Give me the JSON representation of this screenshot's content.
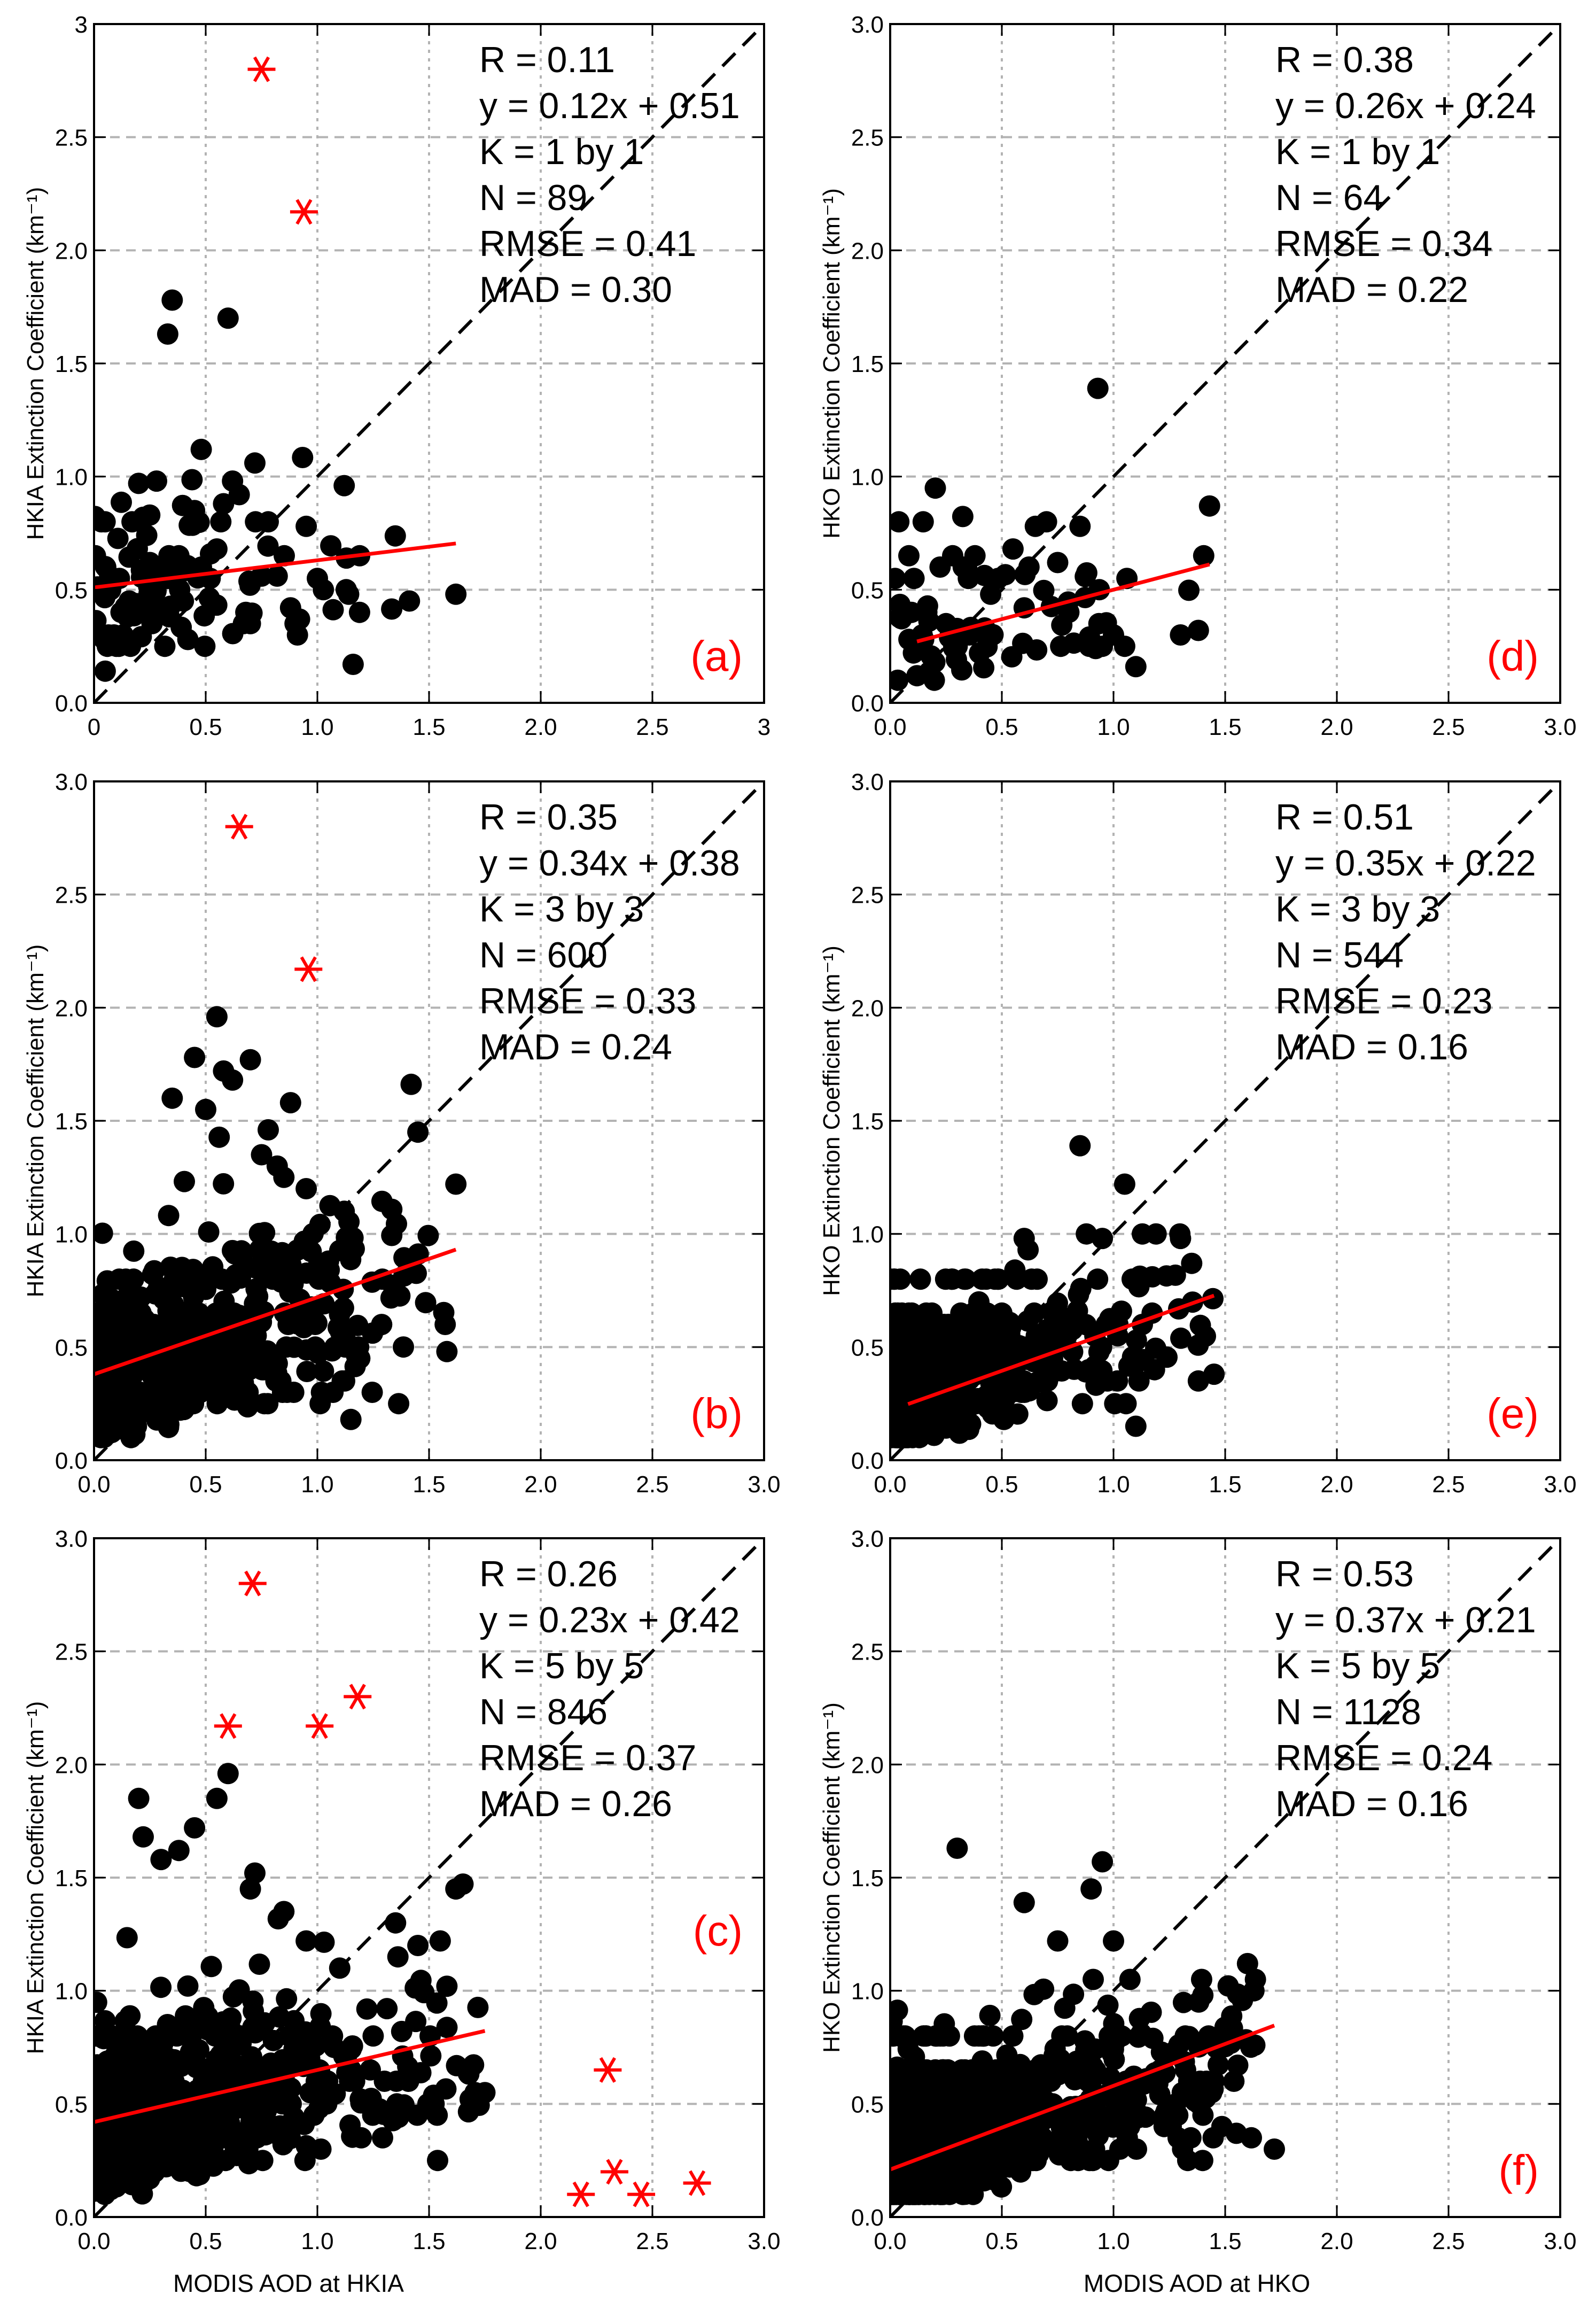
{
  "figure": {
    "bottom_xlabels": [
      "MODIS AOD at HKIA",
      "MODIS AOD at HKO"
    ]
  },
  "chart_data": [
    {
      "id": "a",
      "type": "scatter",
      "panel_label": "(a)",
      "ylabel": "HKIA Extinction Coefficient (km⁻¹)",
      "xlabel": "",
      "xlim": [
        0,
        3
      ],
      "ylim": [
        0,
        3
      ],
      "xticks": [
        0,
        0.5,
        1.0,
        1.5,
        2.0,
        2.5,
        3
      ],
      "xtick_labels": [
        "0",
        "0.5",
        "1.0",
        "1.5",
        "2.0",
        "2.5",
        "3"
      ],
      "yticks": [
        0,
        0.5,
        1.0,
        1.5,
        2.0,
        2.5,
        3
      ],
      "ytick_labels": [
        "0.0",
        "0.5",
        "1.0",
        "1.5",
        "2.0",
        "2.5",
        "3"
      ],
      "grid": true,
      "stats": [
        "R = 0.11",
        "y = 0.12x + 0.51",
        "K = 1 by 1",
        "N = 89",
        "RMSE = 0.41",
        "MAD = 0.30"
      ],
      "fit_line": {
        "slope": 0.12,
        "intercept": 0.51,
        "x_range": [
          0,
          1.62
        ]
      },
      "one_to_one": true,
      "outliers": [
        [
          0.75,
          2.8
        ],
        [
          0.94,
          2.17
        ]
      ],
      "seed": 11,
      "generated_points": {
        "n": 89,
        "x_max": 1.62,
        "x_scale": 0.5,
        "y_max": 1.8,
        "y_noise": 0.18
      },
      "points": [
        [
          0.05,
          0.14
        ],
        [
          0.1,
          0.25
        ],
        [
          0.13,
          0.3
        ],
        [
          0.15,
          0.38
        ],
        [
          0.17,
          0.8
        ],
        [
          0.2,
          0.97
        ],
        [
          0.22,
          0.82
        ],
        [
          0.25,
          0.62
        ],
        [
          0.28,
          0.98
        ],
        [
          0.3,
          0.55
        ],
        [
          0.33,
          1.63
        ],
        [
          0.35,
          1.78
        ],
        [
          0.38,
          0.65
        ],
        [
          0.4,
          0.45
        ],
        [
          0.42,
          0.28
        ],
        [
          0.45,
          0.85
        ],
        [
          0.48,
          1.12
        ],
        [
          0.52,
          0.55
        ],
        [
          0.55,
          0.68
        ],
        [
          0.58,
          0.88
        ],
        [
          0.6,
          1.7
        ],
        [
          0.62,
          0.98
        ],
        [
          0.65,
          0.92
        ],
        [
          0.7,
          0.35
        ],
        [
          0.72,
          1.06
        ],
        [
          0.75,
          0.56
        ],
        [
          0.78,
          0.8
        ],
        [
          0.82,
          0.56
        ],
        [
          0.88,
          0.42
        ],
        [
          0.9,
          0.35
        ],
        [
          0.92,
          0.37
        ],
        [
          0.95,
          0.78
        ],
        [
          1.0,
          0.55
        ],
        [
          1.12,
          0.96
        ],
        [
          1.13,
          0.64
        ],
        [
          1.14,
          0.48
        ],
        [
          1.16,
          0.17
        ],
        [
          1.62,
          0.48
        ]
      ]
    },
    {
      "id": "d",
      "type": "scatter",
      "panel_label": "(d)",
      "ylabel": "HKO Extinction Coefficient (km⁻¹)",
      "xlabel": "",
      "xlim": [
        0,
        3
      ],
      "ylim": [
        0,
        3
      ],
      "xticks": [
        0,
        0.5,
        1.0,
        1.5,
        2.0,
        2.5,
        3.0
      ],
      "xtick_labels": [
        "0.0",
        "0.5",
        "1.0",
        "1.5",
        "2.0",
        "2.5",
        "3.0"
      ],
      "yticks": [
        0,
        0.5,
        1.0,
        1.5,
        2.0,
        2.5,
        3.0
      ],
      "ytick_labels": [
        "0.0",
        "0.5",
        "1.0",
        "1.5",
        "2.0",
        "2.5",
        "3.0"
      ],
      "grid": true,
      "stats": [
        "R = 0.38",
        "y = 0.26x + 0.24",
        "K = 1 by 1",
        "N = 64",
        "RMSE = 0.34",
        "MAD = 0.22"
      ],
      "fit_line": {
        "slope": 0.26,
        "intercept": 0.24,
        "x_range": [
          0.12,
          1.43
        ]
      },
      "one_to_one": true,
      "outliers": [],
      "seed": 44,
      "generated_points": {
        "n": 64,
        "x_max": 1.43,
        "x_scale": 0.5,
        "y_max": 1.0,
        "y_noise": 0.13
      },
      "points": [
        [
          0.12,
          0.12
        ],
        [
          0.15,
          0.28
        ],
        [
          0.2,
          0.18
        ],
        [
          0.25,
          0.35
        ],
        [
          0.28,
          0.65
        ],
        [
          0.3,
          0.25
        ],
        [
          0.35,
          0.55
        ],
        [
          0.4,
          0.22
        ],
        [
          0.45,
          0.48
        ],
        [
          0.55,
          0.68
        ],
        [
          0.6,
          0.42
        ],
        [
          0.65,
          0.78
        ],
        [
          0.7,
          0.8
        ],
        [
          0.75,
          0.62
        ],
        [
          0.8,
          0.4
        ],
        [
          0.85,
          0.78
        ],
        [
          0.92,
          0.24
        ],
        [
          0.93,
          1.39
        ],
        [
          0.95,
          0.25
        ],
        [
          1.0,
          0.3
        ],
        [
          1.05,
          0.25
        ],
        [
          1.1,
          0.16
        ],
        [
          1.3,
          0.3
        ],
        [
          1.38,
          0.32
        ],
        [
          1.43,
          0.87
        ]
      ]
    },
    {
      "id": "b",
      "type": "scatter",
      "panel_label": "(b)",
      "ylabel": "HKIA Extinction Coefficient (km⁻¹)",
      "xlabel": "",
      "xlim": [
        0,
        3
      ],
      "ylim": [
        0,
        3
      ],
      "xticks": [
        0,
        0.5,
        1.0,
        1.5,
        2.0,
        2.5,
        3.0
      ],
      "xtick_labels": [
        "0.0",
        "0.5",
        "1.0",
        "1.5",
        "2.0",
        "2.5",
        "3.0"
      ],
      "yticks": [
        0,
        0.5,
        1.0,
        1.5,
        2.0,
        2.5,
        3.0
      ],
      "ytick_labels": [
        "0.0",
        "0.5",
        "1.0",
        "1.5",
        "2.0",
        "2.5",
        "3.0"
      ],
      "grid": true,
      "stats": [
        "R = 0.35",
        "y = 0.34x + 0.38",
        "K = 3 by 3",
        "N = 600",
        "RMSE = 0.33",
        "MAD = 0.24"
      ],
      "fit_line": {
        "slope": 0.34,
        "intercept": 0.38,
        "x_range": [
          0,
          1.62
        ]
      },
      "one_to_one": true,
      "outliers": [
        [
          0.65,
          2.8
        ],
        [
          0.96,
          2.17
        ]
      ],
      "seed": 22,
      "generated_points": {
        "n": 520,
        "x_max": 1.62,
        "x_scale": 0.5,
        "y_max": 2.0,
        "y_noise": 0.2
      },
      "points": [
        [
          0.05,
          0.38
        ],
        [
          0.35,
          1.6
        ],
        [
          0.45,
          1.78
        ],
        [
          0.5,
          1.55
        ],
        [
          0.55,
          1.96
        ],
        [
          0.58,
          1.72
        ],
        [
          0.62,
          1.68
        ],
        [
          0.7,
          1.77
        ],
        [
          0.75,
          1.35
        ],
        [
          0.78,
          1.46
        ],
        [
          0.82,
          1.3
        ],
        [
          0.85,
          1.25
        ],
        [
          0.88,
          1.58
        ],
        [
          0.95,
          1.2
        ],
        [
          1.05,
          0.88
        ],
        [
          1.12,
          1.1
        ],
        [
          1.15,
          0.18
        ],
        [
          1.45,
          1.45
        ],
        [
          1.58,
          0.48
        ],
        [
          1.62,
          1.22
        ]
      ]
    },
    {
      "id": "e",
      "type": "scatter",
      "panel_label": "(e)",
      "ylabel": "HKO Extinction Coefficient (km⁻¹)",
      "xlabel": "",
      "xlim": [
        0,
        3
      ],
      "ylim": [
        0,
        3
      ],
      "xticks": [
        0,
        0.5,
        1.0,
        1.5,
        2.0,
        2.5,
        3.0
      ],
      "xtick_labels": [
        "0.0",
        "0.5",
        "1.0",
        "1.5",
        "2.0",
        "2.5",
        "3.0"
      ],
      "yticks": [
        0,
        0.5,
        1.0,
        1.5,
        2.0,
        2.5,
        3.0
      ],
      "ytick_labels": [
        "0.0",
        "0.5",
        "1.0",
        "1.5",
        "2.0",
        "2.5",
        "3.0"
      ],
      "grid": true,
      "stats": [
        "R = 0.51",
        "y = 0.35x + 0.22",
        "K = 3 by 3",
        "N = 544",
        "RMSE = 0.23",
        "MAD = 0.16"
      ],
      "fit_line": {
        "slope": 0.35,
        "intercept": 0.22,
        "x_range": [
          0.08,
          1.45
        ]
      },
      "one_to_one": true,
      "outliers": [],
      "seed": 55,
      "generated_points": {
        "n": 480,
        "x_max": 1.45,
        "x_scale": 0.4,
        "y_max": 1.0,
        "y_noise": 0.14
      },
      "points": [
        [
          0.85,
          1.39
        ],
        [
          1.05,
          1.22
        ],
        [
          1.1,
          0.15
        ],
        [
          1.3,
          0.98
        ],
        [
          1.35,
          0.87
        ],
        [
          1.38,
          0.35
        ],
        [
          1.45,
          0.38
        ],
        [
          0.95,
          0.98
        ],
        [
          0.6,
          0.98
        ]
      ]
    },
    {
      "id": "c",
      "type": "scatter",
      "panel_label": "(c)",
      "ylabel": "HKIA Extinction Coefficient (km⁻¹)",
      "xlabel": "MODIS AOD at HKIA",
      "xlim": [
        0,
        3
      ],
      "ylim": [
        0,
        3
      ],
      "xticks": [
        0,
        0.5,
        1.0,
        1.5,
        2.0,
        2.5,
        3.0
      ],
      "xtick_labels": [
        "0.0",
        "0.5",
        "1.0",
        "1.5",
        "2.0",
        "2.5",
        "3.0"
      ],
      "yticks": [
        0,
        0.5,
        1.0,
        1.5,
        2.0,
        2.5,
        3.0
      ],
      "ytick_labels": [
        "0.0",
        "0.5",
        "1.0",
        "1.5",
        "2.0",
        "2.5",
        "3.0"
      ],
      "grid": true,
      "stats": [
        "R = 0.26",
        "y = 0.23x + 0.42",
        "K = 5 by 5",
        "N = 846",
        "RMSE = 0.37",
        "MAD = 0.26"
      ],
      "fit_line": {
        "slope": 0.23,
        "intercept": 0.42,
        "x_range": [
          0,
          1.75
        ]
      },
      "one_to_one": true,
      "outliers": [
        [
          0.71,
          2.8
        ],
        [
          0.6,
          2.17
        ],
        [
          1.01,
          2.17
        ],
        [
          1.18,
          2.3
        ],
        [
          2.3,
          0.65
        ],
        [
          2.33,
          0.2
        ],
        [
          2.18,
          0.1
        ],
        [
          2.45,
          0.1
        ],
        [
          2.7,
          0.15
        ]
      ],
      "seed": 33,
      "generated_points": {
        "n": 640,
        "x_max": 1.75,
        "x_scale": 0.5,
        "y_max": 1.95,
        "y_noise": 0.2
      },
      "points": [
        [
          0.2,
          1.85
        ],
        [
          0.22,
          1.68
        ],
        [
          0.3,
          1.58
        ],
        [
          0.38,
          1.62
        ],
        [
          0.45,
          1.72
        ],
        [
          0.55,
          1.85
        ],
        [
          0.6,
          1.96
        ],
        [
          0.7,
          1.45
        ],
        [
          0.72,
          1.52
        ],
        [
          0.85,
          1.35
        ],
        [
          0.95,
          1.22
        ],
        [
          1.1,
          1.1
        ],
        [
          1.35,
          1.3
        ],
        [
          1.45,
          1.2
        ],
        [
          1.55,
          1.22
        ],
        [
          1.58,
          1.02
        ],
        [
          1.62,
          1.45
        ],
        [
          1.75,
          0.55
        ]
      ]
    },
    {
      "id": "f",
      "type": "scatter",
      "panel_label": "(f)",
      "ylabel": "HKO Extinction Coefficient (km⁻¹)",
      "xlabel": "MODIS AOD at HKO",
      "xlim": [
        0,
        3
      ],
      "ylim": [
        0,
        3
      ],
      "xticks": [
        0,
        0.5,
        1.0,
        1.5,
        2.0,
        2.5,
        3.0
      ],
      "xtick_labels": [
        "0.0",
        "0.5",
        "1.0",
        "1.5",
        "2.0",
        "2.5",
        "3.0"
      ],
      "yticks": [
        0,
        0.5,
        1.0,
        1.5,
        2.0,
        2.5,
        3.0
      ],
      "ytick_labels": [
        "0.0",
        "0.5",
        "1.0",
        "1.5",
        "2.0",
        "2.5",
        "3.0"
      ],
      "grid": true,
      "stats": [
        "R = 0.53",
        "y = 0.37x + 0.21",
        "K = 5 by 5",
        "N = 1128",
        "RMSE = 0.24",
        "MAD = 0.16"
      ],
      "fit_line": {
        "slope": 0.37,
        "intercept": 0.21,
        "x_range": [
          0,
          1.72
        ]
      },
      "one_to_one": true,
      "outliers": [],
      "seed": 66,
      "generated_points": {
        "n": 900,
        "x_max": 1.72,
        "x_scale": 0.45,
        "y_max": 1.05,
        "y_noise": 0.15
      },
      "points": [
        [
          0.3,
          1.63
        ],
        [
          0.6,
          1.39
        ],
        [
          0.95,
          1.57
        ],
        [
          0.75,
          1.22
        ],
        [
          1.0,
          1.22
        ],
        [
          0.9,
          1.45
        ],
        [
          1.6,
          1.12
        ],
        [
          1.72,
          0.3
        ],
        [
          1.55,
          0.37
        ],
        [
          1.4,
          0.98
        ],
        [
          1.45,
          0.6
        ]
      ]
    }
  ]
}
